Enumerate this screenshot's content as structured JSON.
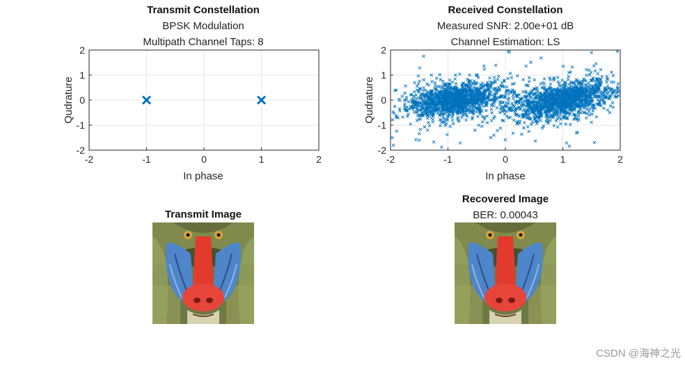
{
  "chart_data": [
    {
      "type": "scatter",
      "title": "Transmit Constellation",
      "subtitle": [
        "BPSK Modulation",
        "Multipath Channel Taps: 8"
      ],
      "xlabel": "In phase",
      "ylabel": "Qudrature",
      "xlim": [
        -2,
        2
      ],
      "ylim": [
        -2,
        2
      ],
      "xticks": [
        -2,
        -1,
        0,
        1,
        2
      ],
      "yticks": [
        -2,
        -1,
        0,
        1,
        2
      ],
      "grid": true,
      "marker": "x",
      "color": "#0072BD",
      "points": [
        [
          -1,
          0
        ],
        [
          1,
          0
        ]
      ]
    },
    {
      "type": "scatter",
      "title": "Received Constellation",
      "subtitle": [
        "Measured SNR: 2.00e+01 dB",
        "Channel Estimation: LS"
      ],
      "xlabel": "In phase",
      "ylabel": "Qudrature",
      "xlim": [
        -2,
        2
      ],
      "ylim": [
        -2,
        2
      ],
      "xticks": [
        -2,
        -1,
        0,
        1,
        2
      ],
      "yticks": [
        -2,
        -1,
        0,
        1,
        2
      ],
      "grid": true,
      "marker": "x",
      "color": "#0072BD",
      "clusters": [
        {
          "center": [
            -0.9,
            0.0
          ],
          "spread": [
            0.4,
            0.32
          ],
          "tilt": 0.12
        },
        {
          "center": [
            1.0,
            0.0
          ],
          "spread": [
            0.45,
            0.35
          ],
          "tilt": 0.18
        }
      ],
      "outlier_examples": [
        [
          -1.95,
          -1.8
        ],
        [
          -1.5,
          -1.6
        ],
        [
          1.5,
          1.9
        ],
        [
          1.95,
          1.95
        ],
        [
          0.05,
          1.95
        ],
        [
          -0.2,
          -1.4
        ],
        [
          1.65,
          0.6
        ],
        [
          -1.9,
          0.4
        ]
      ]
    }
  ],
  "images": [
    {
      "title": "Transmit Image",
      "subtitle": "",
      "alt": "mandrill"
    },
    {
      "title": "Recovered Image",
      "subtitle": "BER: 0.00043",
      "alt": "mandrill"
    }
  ],
  "watermark": "CSDN @海神之光"
}
